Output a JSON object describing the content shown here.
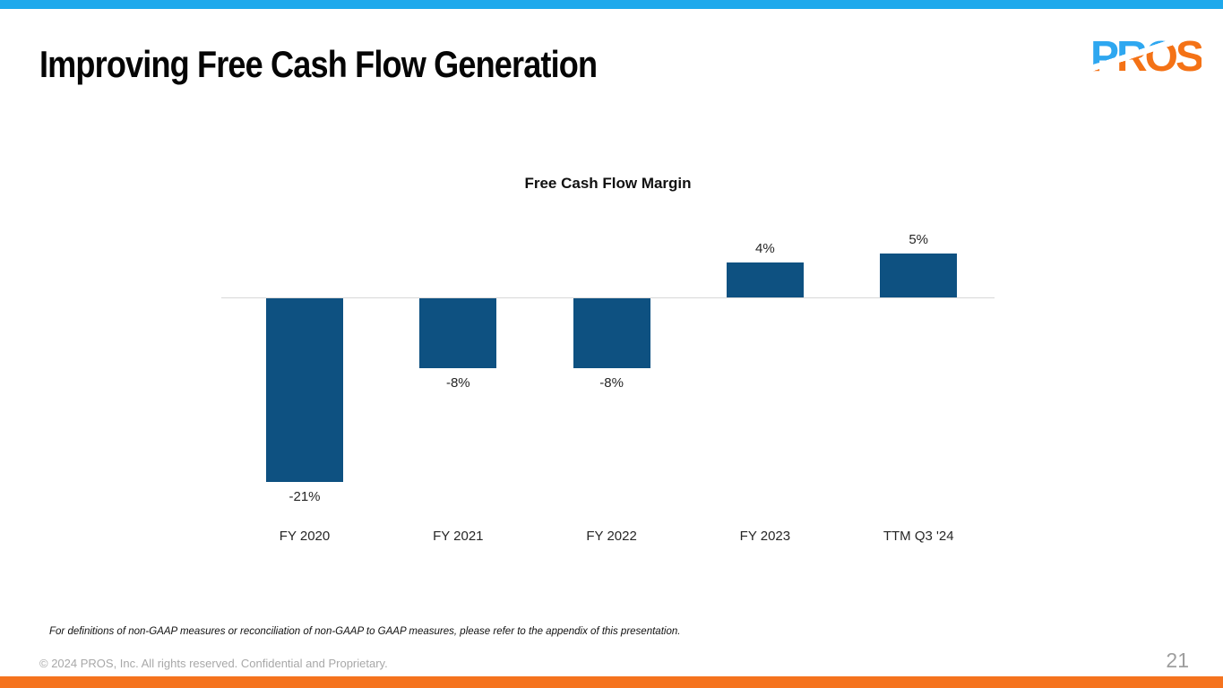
{
  "slide": {
    "title": "Improving Free Cash Flow Generation",
    "logo_text": "PROS",
    "page_number": "21",
    "footnote": "For definitions of non-GAAP measures or reconciliation of non-GAAP to GAAP measures, please refer to the appendix of this presentation.",
    "copyright": "© 2024 PROS, Inc. All rights reserved. Confidential and Proprietary."
  },
  "colors": {
    "top_bar": "#1EA9EC",
    "bottom_bar": "#F5731E",
    "bar_fill": "#0E5181",
    "axis_line": "#D8D8D8",
    "logo_blue": "#2EA7F0",
    "logo_orange": "#F47216",
    "footer_gray": "#A8A8A8"
  },
  "chart_data": {
    "type": "bar",
    "title": "Free Cash Flow Margin",
    "categories": [
      "FY 2020",
      "FY 2021",
      "FY 2022",
      "FY 2023",
      "TTM Q3 '24"
    ],
    "values": [
      -21,
      -8,
      -8,
      4,
      5
    ],
    "data_labels": [
      "-21%",
      "-8%",
      "-8%",
      "4%",
      "5%"
    ],
    "xlabel": "",
    "ylabel": "",
    "ylim": [
      -24,
      8
    ],
    "grid": false,
    "legend": false,
    "bar_color": "#0E5181",
    "zero_line": true
  }
}
